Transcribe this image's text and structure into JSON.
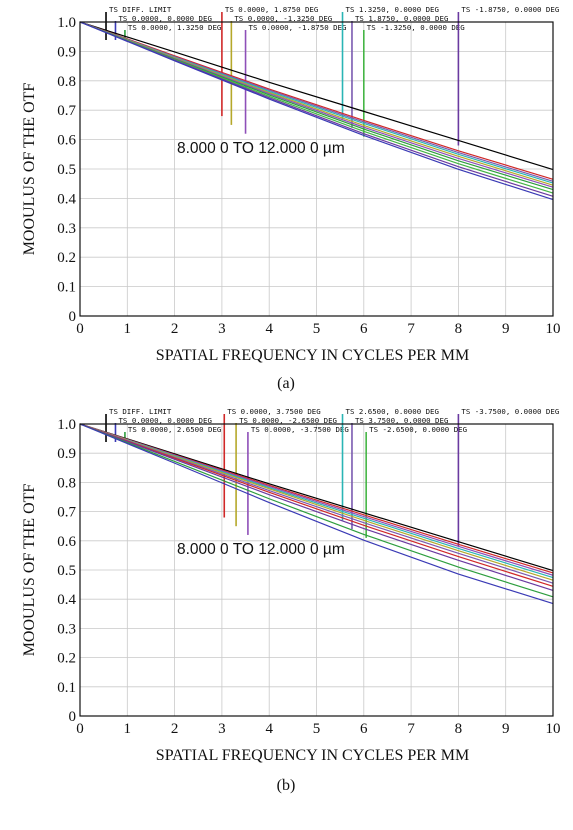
{
  "chart_data": [
    {
      "type": "line",
      "caption": "(a)",
      "xlabel": "SPATIAL FREQUENCY IN CYCLES PER MM",
      "ylabel": "MOOULUS OF THE OTF",
      "annotation": "8.000 0 TO 12.000 0 µm",
      "xlim": [
        0,
        10
      ],
      "ylim": [
        0,
        1.0
      ],
      "xticks": [
        "0",
        "1",
        "2",
        "3",
        "4",
        "5",
        "6",
        "7",
        "8",
        "9",
        "10"
      ],
      "yticks": [
        "0",
        "0.1",
        "0.2",
        "0.3",
        "0.4",
        "0.5",
        "0.6",
        "0.7",
        "0.8",
        "0.9",
        "1.0"
      ],
      "grid": true,
      "legend": [
        {
          "label": "TS DIFF. LIMIT",
          "color": "#000000",
          "x": 0.55
        },
        {
          "label": "TS 0.0000, 0.0000 DEG",
          "color": "#3a3ab5",
          "x": 0.75
        },
        {
          "label": "TS 0.0000, 1.3250 DEG",
          "color": "#2e9e3e",
          "x": 0.95
        },
        {
          "label": "TS 0.0000, 1.8750 DEG",
          "color": "#d02828",
          "x": 3.0
        },
        {
          "label": "TS 0.0000, -1.3250 DEG",
          "color": "#b5a82a",
          "x": 3.2
        },
        {
          "label": "TS 0.0000, -1.8750 DEG",
          "color": "#8e4fb8",
          "x": 3.5
        },
        {
          "label": "TS 1.3250, 0.0000 DEG",
          "color": "#2ab5b5",
          "x": 5.55
        },
        {
          "label": "TS 1.8750, 0.0000 DEG",
          "color": "#7a5ab0",
          "x": 5.75
        },
        {
          "label": "TS -1.3250, 0.0000 DEG",
          "color": "#45b545",
          "x": 6.0
        },
        {
          "label": "TS -1.8750, 0.0000 DEG",
          "color": "#6a3aa0",
          "x": 8.0
        }
      ],
      "series": [
        {
          "color": "#000000",
          "x": [
            0,
            2,
            4,
            6,
            8,
            10
          ],
          "values": [
            1.0,
            0.898,
            0.795,
            0.696,
            0.597,
            0.498
          ]
        },
        {
          "color": "#d02828",
          "x": [
            0,
            2,
            4,
            6,
            8,
            10
          ],
          "values": [
            1.0,
            0.885,
            0.772,
            0.665,
            0.562,
            0.465
          ]
        },
        {
          "color": "#7a5ab0",
          "x": [
            0,
            2,
            4,
            6,
            8,
            10
          ],
          "values": [
            1.0,
            0.882,
            0.768,
            0.66,
            0.556,
            0.458
          ]
        },
        {
          "color": "#2ab5b5",
          "x": [
            0,
            2,
            4,
            6,
            8,
            10
          ],
          "values": [
            1.0,
            0.88,
            0.764,
            0.655,
            0.55,
            0.452
          ]
        },
        {
          "color": "#b5a82a",
          "x": [
            0,
            2,
            4,
            6,
            8,
            10
          ],
          "values": [
            1.0,
            0.878,
            0.76,
            0.648,
            0.543,
            0.445
          ]
        },
        {
          "color": "#8e4fb8",
          "x": [
            0,
            2,
            4,
            6,
            8,
            10
          ],
          "values": [
            1.0,
            0.876,
            0.756,
            0.642,
            0.536,
            0.438
          ]
        },
        {
          "color": "#2e9e3e",
          "x": [
            0,
            2,
            4,
            6,
            8,
            10
          ],
          "values": [
            1.0,
            0.874,
            0.752,
            0.636,
            0.528,
            0.43
          ]
        },
        {
          "color": "#45b545",
          "x": [
            0,
            2,
            4,
            6,
            8,
            10
          ],
          "values": [
            1.0,
            0.872,
            0.747,
            0.628,
            0.518,
            0.418
          ]
        },
        {
          "color": "#6a3aa0",
          "x": [
            0,
            2,
            4,
            6,
            8,
            10
          ],
          "values": [
            1.0,
            0.87,
            0.742,
            0.62,
            0.508,
            0.407
          ]
        },
        {
          "color": "#3a3ab5",
          "x": [
            0,
            2,
            4,
            6,
            8,
            10
          ],
          "values": [
            1.0,
            0.868,
            0.738,
            0.614,
            0.499,
            0.396
          ]
        }
      ]
    },
    {
      "type": "line",
      "caption": "(b)",
      "xlabel": "SPATIAL FREQUENCY IN CYCLES PER MM",
      "ylabel": "MOOULUS OF THE OTF",
      "annotation": "8.000 0 TO 12.000 0 µm",
      "xlim": [
        0,
        10
      ],
      "ylim": [
        0,
        1.0
      ],
      "xticks": [
        "0",
        "1",
        "2",
        "3",
        "4",
        "5",
        "6",
        "7",
        "8",
        "9",
        "10"
      ],
      "yticks": [
        "0",
        "0.1",
        "0.2",
        "0.3",
        "0.4",
        "0.5",
        "0.6",
        "0.7",
        "0.8",
        "0.9",
        "1.0"
      ],
      "grid": true,
      "legend": [
        {
          "label": "TS DIFF. LIMIT",
          "color": "#000000",
          "x": 0.55
        },
        {
          "label": "TS 0.0000, 0.0000 DEG",
          "color": "#3a3ab5",
          "x": 0.75
        },
        {
          "label": "TS 0.0000, 2.6500 DEG",
          "color": "#2e9e3e",
          "x": 0.95
        },
        {
          "label": "TS 0.0000, 3.7500 DEG",
          "color": "#d02828",
          "x": 3.05
        },
        {
          "label": "TS 0.0000, -2.6500 DEG",
          "color": "#b5a82a",
          "x": 3.3
        },
        {
          "label": "TS 0.0000, -3.7500 DEG",
          "color": "#8e4fb8",
          "x": 3.55
        },
        {
          "label": "TS 2.6500, 0.0000 DEG",
          "color": "#2ab5b5",
          "x": 5.55
        },
        {
          "label": "TS 3.7500, 0.0000 DEG",
          "color": "#7a5ab0",
          "x": 5.75
        },
        {
          "label": "TS -2.6500, 0.0000 DEG",
          "color": "#45b545",
          "x": 6.05
        },
        {
          "label": "TS -3.7500, 0.0000 DEG",
          "color": "#6a3aa0",
          "x": 8.0
        }
      ],
      "series": [
        {
          "color": "#000000",
          "x": [
            0,
            2,
            4,
            6,
            8,
            10
          ],
          "values": [
            1.0,
            0.898,
            0.795,
            0.696,
            0.597,
            0.498
          ]
        },
        {
          "color": "#d02828",
          "x": [
            0,
            2,
            4,
            6,
            8,
            10
          ],
          "values": [
            1.0,
            0.895,
            0.79,
            0.689,
            0.588,
            0.49
          ]
        },
        {
          "color": "#8e4fb8",
          "x": [
            0,
            2,
            4,
            6,
            8,
            10
          ],
          "values": [
            1.0,
            0.893,
            0.786,
            0.683,
            0.581,
            0.482
          ]
        },
        {
          "color": "#2ab5b5",
          "x": [
            0,
            2,
            4,
            6,
            8,
            10
          ],
          "values": [
            1.0,
            0.891,
            0.782,
            0.677,
            0.574,
            0.474
          ]
        },
        {
          "color": "#b5a82a",
          "x": [
            0,
            2,
            4,
            6,
            8,
            10
          ],
          "values": [
            1.0,
            0.889,
            0.778,
            0.67,
            0.566,
            0.465
          ]
        },
        {
          "color": "#7a5ab0",
          "x": [
            0,
            2,
            4,
            6,
            8,
            10
          ],
          "values": [
            1.0,
            0.886,
            0.772,
            0.662,
            0.557,
            0.455
          ]
        },
        {
          "color": "#d02828",
          "x": [
            0,
            2,
            4,
            6,
            8,
            10
          ],
          "values": [
            1.0,
            0.883,
            0.766,
            0.653,
            0.546,
            0.444
          ]
        },
        {
          "color": "#6a3aa0",
          "x": [
            0,
            2,
            4,
            6,
            8,
            10
          ],
          "values": [
            1.0,
            0.879,
            0.758,
            0.642,
            0.533,
            0.43
          ]
        },
        {
          "color": "#2e9e3e",
          "x": [
            0,
            2,
            4,
            6,
            8,
            10
          ],
          "values": [
            1.0,
            0.872,
            0.744,
            0.622,
            0.51,
            0.408
          ]
        },
        {
          "color": "#3a3ab5",
          "x": [
            0,
            2,
            4,
            6,
            8,
            10
          ],
          "values": [
            1.0,
            0.866,
            0.731,
            0.602,
            0.486,
            0.385
          ]
        }
      ]
    }
  ]
}
